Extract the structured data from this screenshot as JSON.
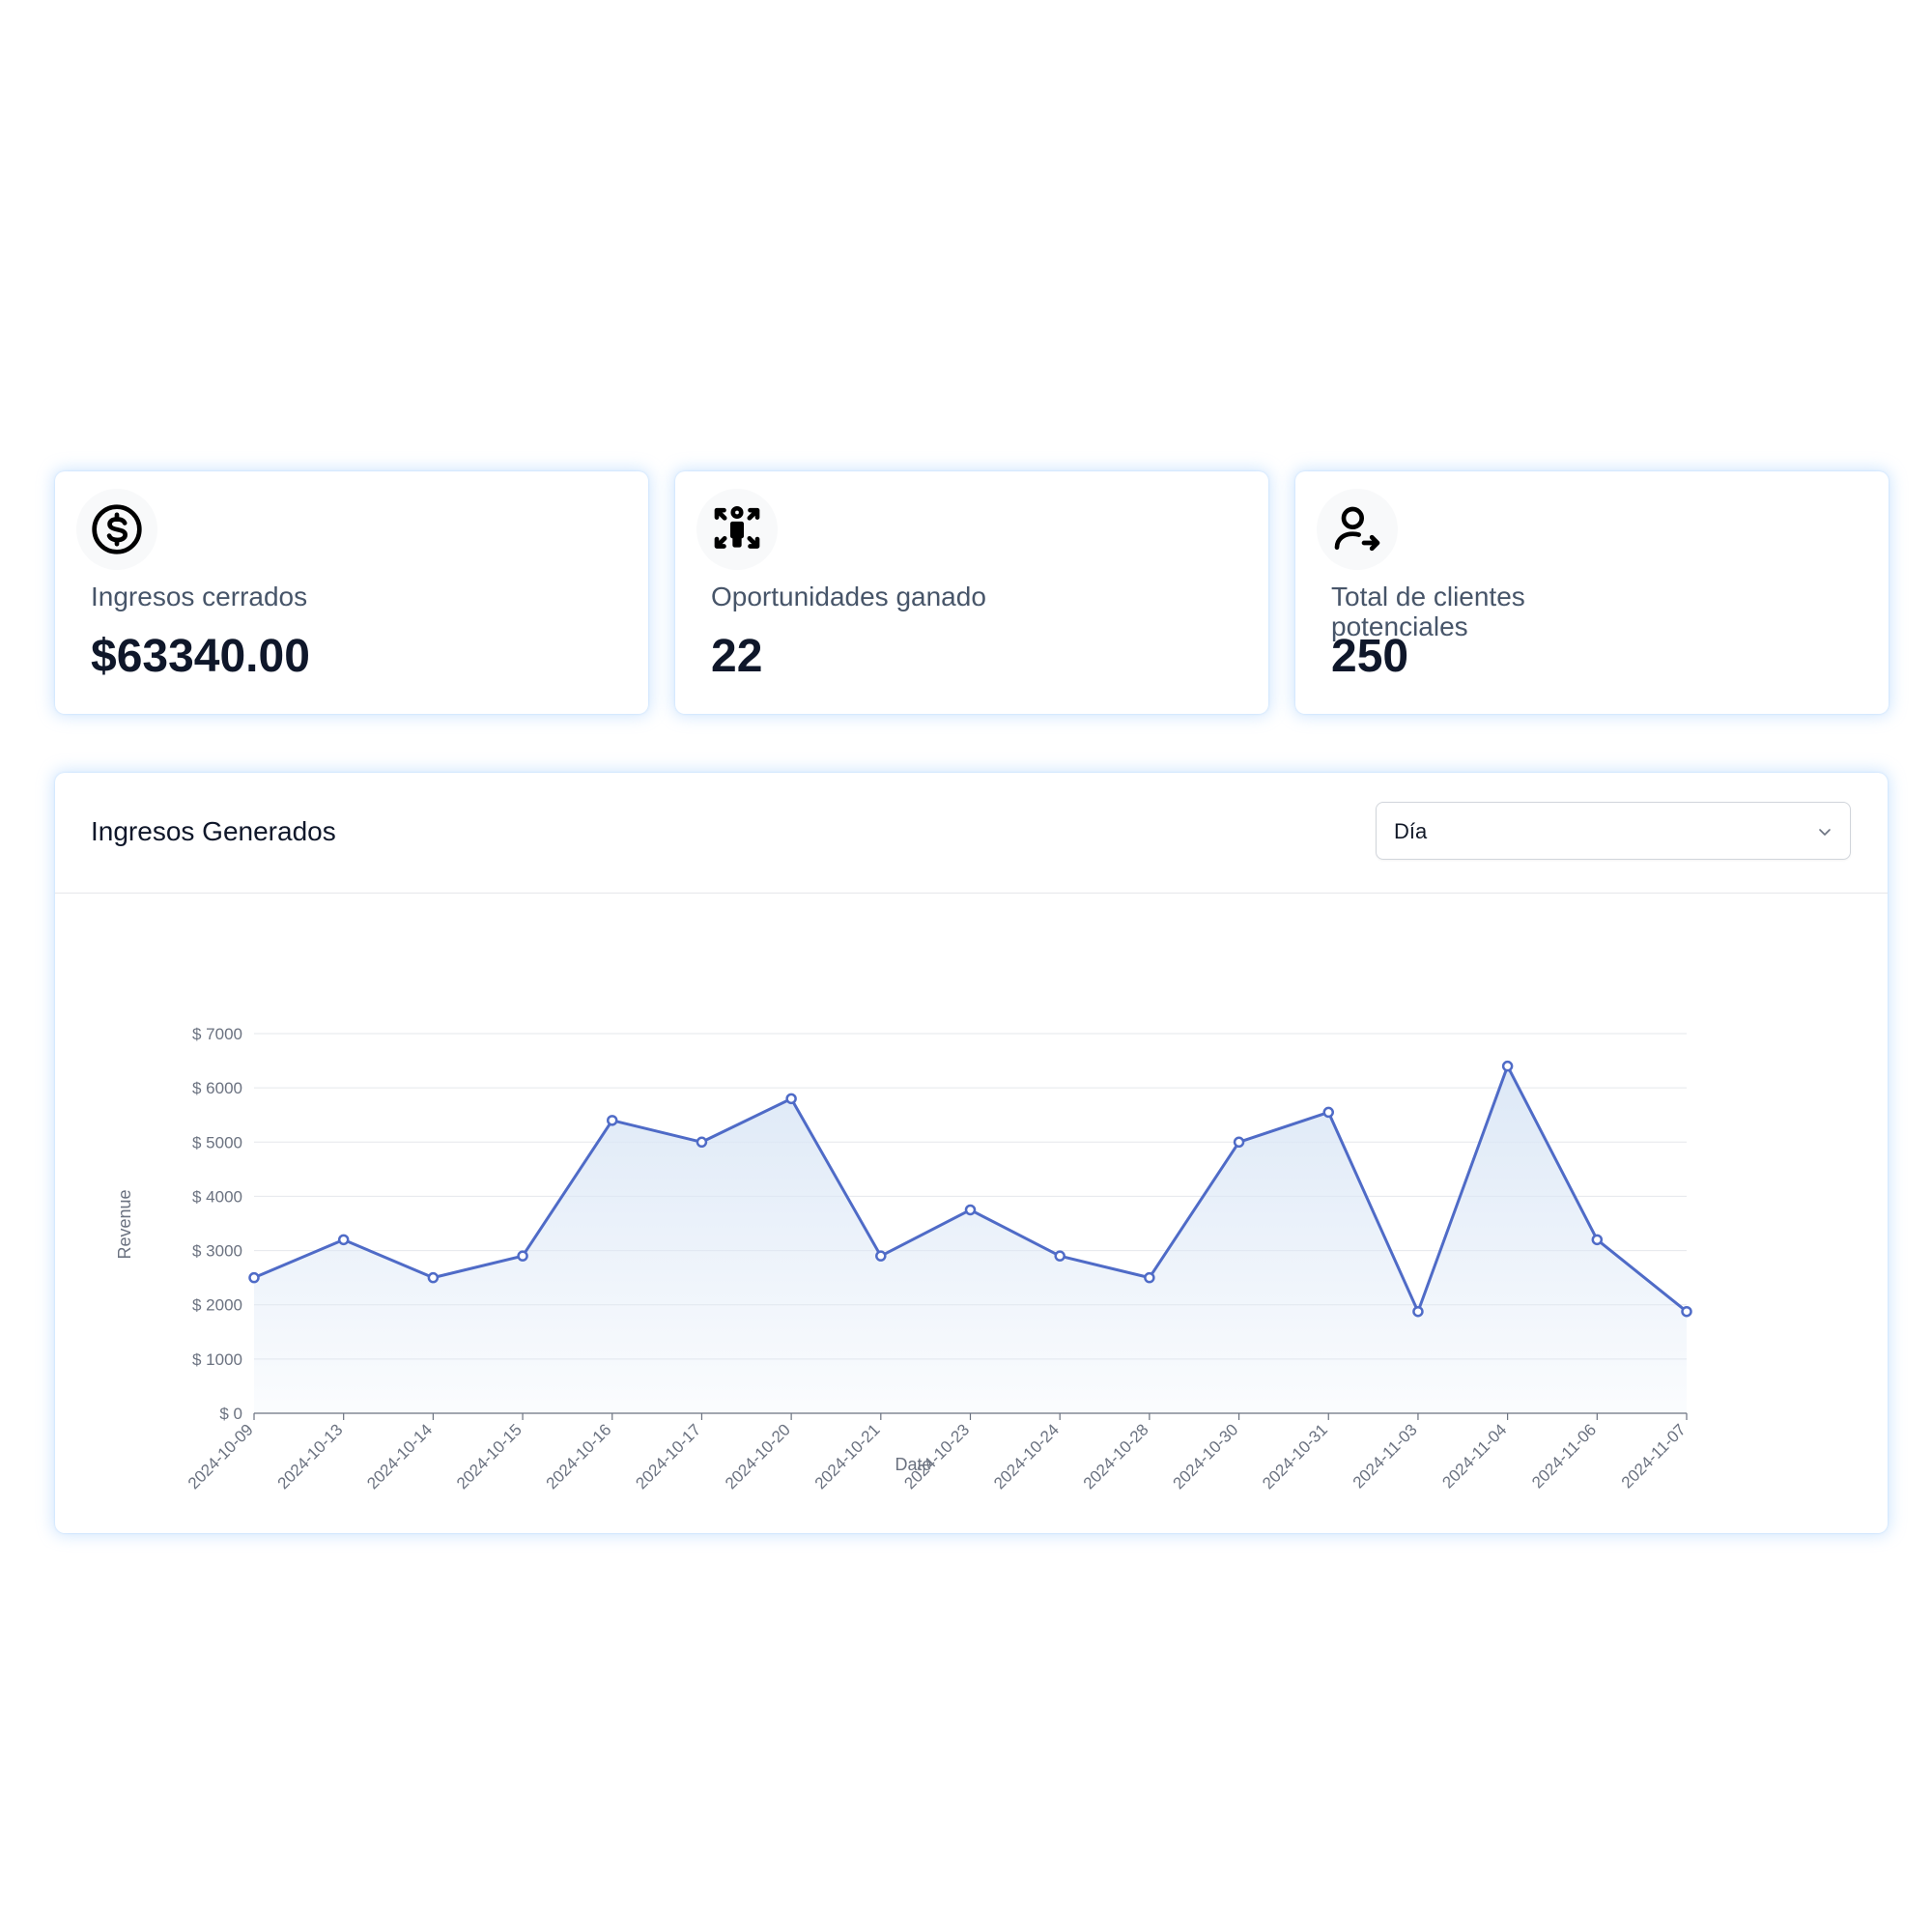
{
  "stats": [
    {
      "icon": "dollar-circle-icon",
      "label": "Ingresos cerrados",
      "value": "$63340.00"
    },
    {
      "icon": "opportunities-icon",
      "label": "Oportunidades ganado",
      "value": "22"
    },
    {
      "icon": "user-arrow-icon",
      "label": "Total de clientes potenciales",
      "value": "250"
    }
  ],
  "revenue_panel": {
    "title": "Ingresos Generados",
    "period_select": {
      "selected": "Día"
    }
  },
  "colors": {
    "line": "#4f6bc7",
    "area_top": "#dbe7f6",
    "grid": "#e5e7eb",
    "card_glow": "#93c5fd"
  },
  "chart_data": {
    "type": "area",
    "xlabel": "Date",
    "ylabel": "Revenue",
    "ylim": [
      0,
      7000
    ],
    "y_ticks": [
      0,
      1000,
      2000,
      3000,
      4000,
      5000,
      6000,
      7000
    ],
    "y_tick_labels": [
      "$ 0",
      "$ 1000",
      "$ 2000",
      "$ 3000",
      "$ 4000",
      "$ 5000",
      "$ 6000",
      "$ 7000"
    ],
    "grid": true,
    "categories": [
      "2024-10-09",
      "2024-10-13",
      "2024-10-14",
      "2024-10-15",
      "2024-10-16",
      "2024-10-17",
      "2024-10-20",
      "2024-10-21",
      "2024-10-23",
      "2024-10-24",
      "2024-10-28",
      "2024-10-30",
      "2024-10-31",
      "2024-11-03",
      "2024-11-04",
      "2024-11-06",
      "2024-11-07"
    ],
    "series": [
      {
        "values": [
          2500,
          3200,
          2500,
          2900,
          5400,
          5000,
          5800,
          2900,
          3750,
          2900,
          2500,
          5000,
          5550,
          1875,
          6400,
          3200,
          1875
        ]
      }
    ]
  }
}
